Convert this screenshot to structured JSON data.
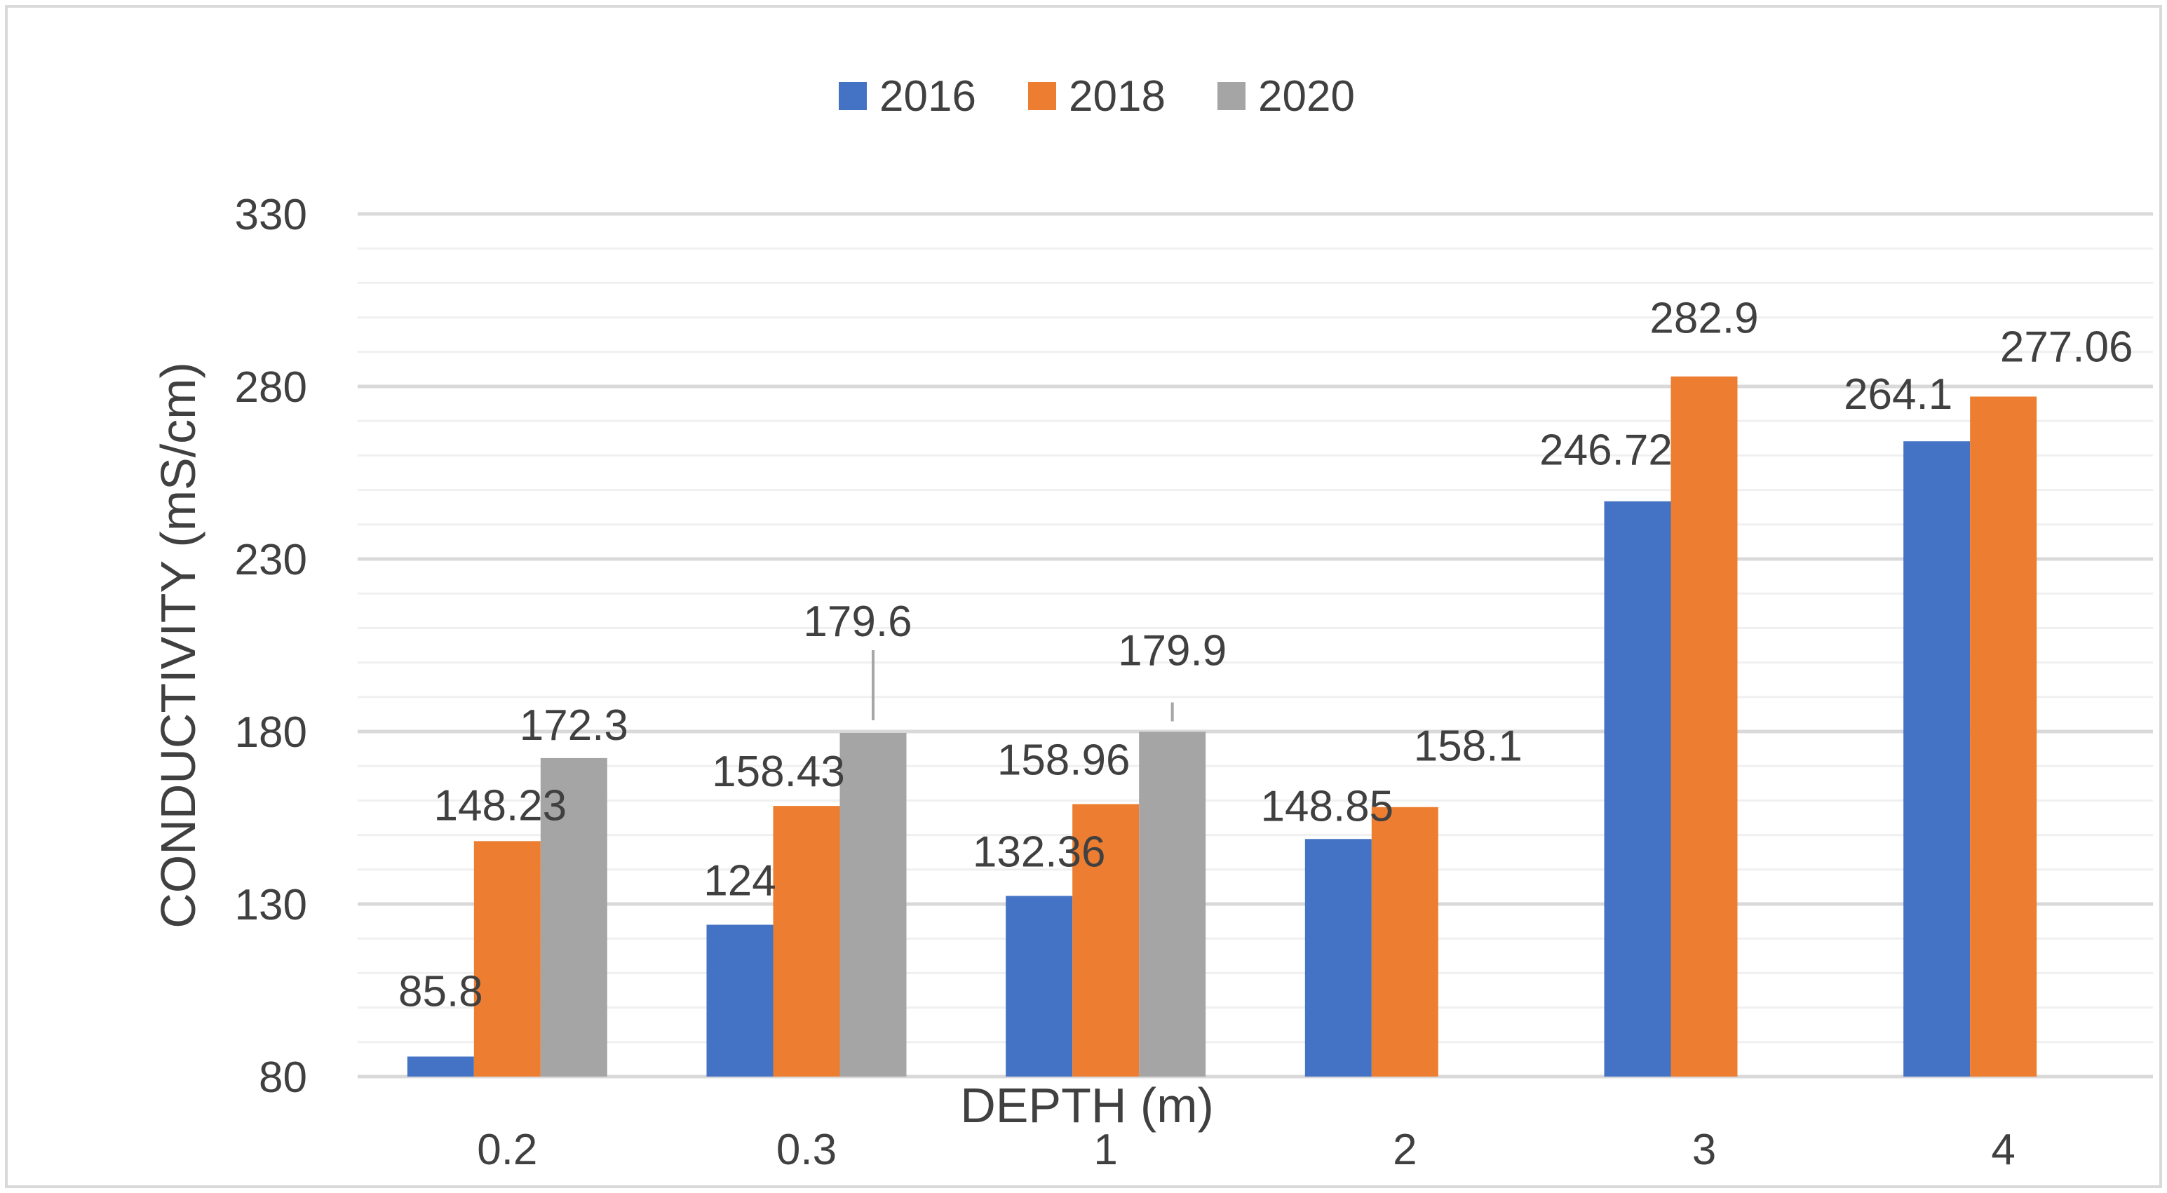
{
  "chart_data": {
    "type": "bar",
    "title": "",
    "xlabel": "DEPTH (m)",
    "ylabel": "CONDUCTIVITY (mS/cm)",
    "categories": [
      "0.2",
      "0.3",
      "1",
      "2",
      "3",
      "4"
    ],
    "ylim": [
      80,
      330
    ],
    "yticks": [
      "80",
      "130",
      "180",
      "230",
      "280",
      "330"
    ],
    "grid": true,
    "legend_position": "top",
    "series": [
      {
        "name": "2016",
        "color": "#4472C4",
        "values": [
          85.8,
          124,
          132.36,
          148.85,
          246.72,
          264.1
        ],
        "labels": [
          "85.8",
          "124",
          "132.36",
          "148.85",
          "246.72",
          "264.1"
        ]
      },
      {
        "name": "2018",
        "color": "#ED7D31",
        "values": [
          148.23,
          158.43,
          158.96,
          158.1,
          282.9,
          277.06
        ],
        "labels": [
          "148.23",
          "158.43",
          "158.96",
          "158.1",
          "282.9",
          "277.06"
        ]
      },
      {
        "name": "2020",
        "color": "#A5A5A5",
        "values": [
          172.3,
          179.6,
          179.9,
          null,
          null,
          null
        ],
        "labels": [
          "172.3",
          "179.6",
          "179.9",
          "",
          "",
          ""
        ]
      }
    ]
  }
}
